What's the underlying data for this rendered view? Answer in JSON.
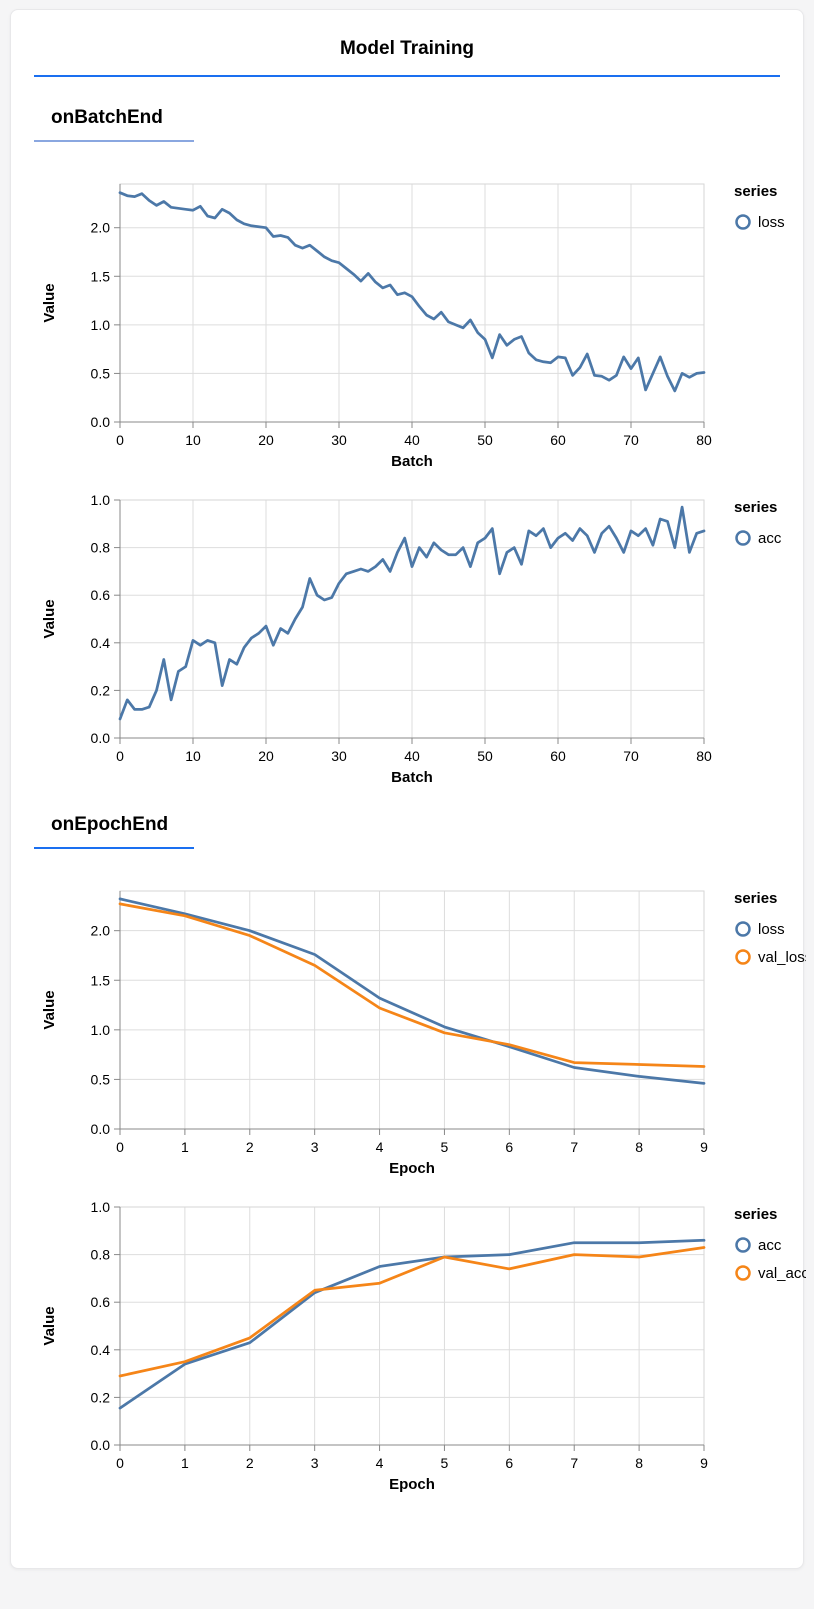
{
  "page": {
    "title": "Model Training"
  },
  "sections": [
    {
      "title": "onBatchEnd",
      "underline_color": "#8aa7e0"
    },
    {
      "title": "onEpochEnd",
      "underline_color": "#1a6ff0"
    }
  ],
  "colors": {
    "title_rule": "#1a6ff0",
    "series_blue": "#4c78a8",
    "series_orange": "#f58518",
    "grid": "#dddddd",
    "frame": "#d6d6d6",
    "axis_domain": "#888888",
    "page_bg": "#f5f5f6",
    "card_bg": "#ffffff"
  },
  "chart_data": [
    {
      "type": "line",
      "section": "onBatchEnd",
      "xlabel": "Batch",
      "ylabel": "Value",
      "legend_title": "series",
      "legend_position": "right",
      "grid": true,
      "xlim": [
        0,
        80
      ],
      "ylim": [
        0,
        2.45
      ],
      "xticks": {
        "values": [
          0,
          10,
          20,
          30,
          40,
          50,
          60,
          70,
          80
        ],
        "labels": [
          "0",
          "10",
          "20",
          "30",
          "40",
          "50",
          "60",
          "70",
          "80"
        ]
      },
      "yticks": {
        "values": [
          0,
          0.5,
          1.0,
          1.5,
          2.0
        ],
        "labels": [
          "0.0",
          "0.5",
          "1.0",
          "1.5",
          "2.0"
        ]
      },
      "x_start": 0,
      "x_step": 1,
      "series": [
        {
          "name": "loss",
          "color": "#4c78a8",
          "values": [
            2.36,
            2.33,
            2.32,
            2.35,
            2.28,
            2.23,
            2.27,
            2.21,
            2.2,
            2.19,
            2.18,
            2.22,
            2.12,
            2.1,
            2.19,
            2.15,
            2.08,
            2.04,
            2.02,
            2.01,
            2.0,
            1.91,
            1.92,
            1.9,
            1.82,
            1.79,
            1.82,
            1.76,
            1.7,
            1.66,
            1.64,
            1.58,
            1.52,
            1.45,
            1.53,
            1.44,
            1.38,
            1.41,
            1.31,
            1.33,
            1.29,
            1.19,
            1.1,
            1.06,
            1.13,
            1.03,
            1.0,
            0.97,
            1.05,
            0.92,
            0.85,
            0.66,
            0.9,
            0.79,
            0.85,
            0.88,
            0.71,
            0.64,
            0.62,
            0.61,
            0.67,
            0.66,
            0.48,
            0.56,
            0.7,
            0.48,
            0.47,
            0.43,
            0.48,
            0.67,
            0.55,
            0.66,
            0.33,
            0.5,
            0.67,
            0.47,
            0.32,
            0.5,
            0.46,
            0.5,
            0.51
          ]
        }
      ]
    },
    {
      "type": "line",
      "section": "onBatchEnd",
      "xlabel": "Batch",
      "ylabel": "Value",
      "legend_title": "series",
      "legend_position": "right",
      "grid": true,
      "xlim": [
        0,
        80
      ],
      "ylim": [
        0,
        1.0
      ],
      "xticks": {
        "values": [
          0,
          10,
          20,
          30,
          40,
          50,
          60,
          70,
          80
        ],
        "labels": [
          "0",
          "10",
          "20",
          "30",
          "40",
          "50",
          "60",
          "70",
          "80"
        ]
      },
      "yticks": {
        "values": [
          0,
          0.2,
          0.4,
          0.6,
          0.8,
          1.0
        ],
        "labels": [
          "0.0",
          "0.2",
          "0.4",
          "0.6",
          "0.8",
          "1.0"
        ]
      },
      "x_start": 0,
      "x_step": 1,
      "series": [
        {
          "name": "acc",
          "color": "#4c78a8",
          "values": [
            0.08,
            0.16,
            0.12,
            0.12,
            0.13,
            0.2,
            0.33,
            0.16,
            0.28,
            0.3,
            0.41,
            0.39,
            0.41,
            0.4,
            0.22,
            0.33,
            0.31,
            0.38,
            0.42,
            0.44,
            0.47,
            0.39,
            0.46,
            0.44,
            0.5,
            0.55,
            0.67,
            0.6,
            0.58,
            0.59,
            0.65,
            0.69,
            0.7,
            0.71,
            0.7,
            0.72,
            0.75,
            0.7,
            0.78,
            0.84,
            0.72,
            0.8,
            0.76,
            0.82,
            0.79,
            0.77,
            0.77,
            0.8,
            0.72,
            0.82,
            0.84,
            0.88,
            0.69,
            0.78,
            0.8,
            0.73,
            0.87,
            0.85,
            0.88,
            0.8,
            0.84,
            0.86,
            0.83,
            0.88,
            0.85,
            0.78,
            0.86,
            0.89,
            0.84,
            0.78,
            0.87,
            0.85,
            0.88,
            0.81,
            0.92,
            0.91,
            0.8,
            0.97,
            0.78,
            0.86,
            0.87
          ]
        }
      ]
    },
    {
      "type": "line",
      "section": "onEpochEnd",
      "xlabel": "Epoch",
      "ylabel": "Value",
      "legend_title": "series",
      "legend_position": "right",
      "grid": true,
      "xlim": [
        0,
        9
      ],
      "ylim": [
        0,
        2.4
      ],
      "xticks": {
        "values": [
          0,
          1,
          2,
          3,
          4,
          5,
          6,
          7,
          8,
          9
        ],
        "labels": [
          "0",
          "1",
          "2",
          "3",
          "4",
          "5",
          "6",
          "7",
          "8",
          "9"
        ]
      },
      "yticks": {
        "values": [
          0,
          0.5,
          1.0,
          1.5,
          2.0
        ],
        "labels": [
          "0.0",
          "0.5",
          "1.0",
          "1.5",
          "2.0"
        ]
      },
      "x_start": 0,
      "x_step": 1,
      "series": [
        {
          "name": "loss",
          "color": "#4c78a8",
          "values": [
            2.32,
            2.17,
            2.0,
            1.76,
            1.32,
            1.03,
            0.83,
            0.62,
            0.53,
            0.46
          ]
        },
        {
          "name": "val_loss",
          "color": "#f58518",
          "values": [
            2.27,
            2.15,
            1.95,
            1.65,
            1.22,
            0.97,
            0.85,
            0.67,
            0.65,
            0.63
          ]
        }
      ]
    },
    {
      "type": "line",
      "section": "onEpochEnd",
      "xlabel": "Epoch",
      "ylabel": "Value",
      "legend_title": "series",
      "legend_position": "right",
      "grid": true,
      "xlim": [
        0,
        9
      ],
      "ylim": [
        0,
        1.0
      ],
      "xticks": {
        "values": [
          0,
          1,
          2,
          3,
          4,
          5,
          6,
          7,
          8,
          9
        ],
        "labels": [
          "0",
          "1",
          "2",
          "3",
          "4",
          "5",
          "6",
          "7",
          "8",
          "9"
        ]
      },
      "yticks": {
        "values": [
          0,
          0.2,
          0.4,
          0.6,
          0.8,
          1.0
        ],
        "labels": [
          "0.0",
          "0.2",
          "0.4",
          "0.6",
          "0.8",
          "1.0"
        ]
      },
      "x_start": 0,
      "x_step": 1,
      "series": [
        {
          "name": "acc",
          "color": "#4c78a8",
          "values": [
            0.155,
            0.34,
            0.43,
            0.64,
            0.75,
            0.79,
            0.8,
            0.85,
            0.85,
            0.86
          ]
        },
        {
          "name": "val_acc",
          "color": "#f58518",
          "values": [
            0.29,
            0.35,
            0.45,
            0.65,
            0.68,
            0.79,
            0.74,
            0.8,
            0.79,
            0.83
          ]
        }
      ]
    }
  ]
}
